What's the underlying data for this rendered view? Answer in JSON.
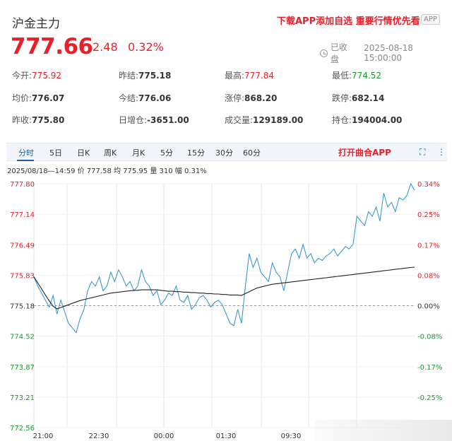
{
  "header": {
    "title": "沪金主力",
    "promo": "下载APP添加自选 重要行情优先看",
    "app_badge": "APP",
    "price": "777.66",
    "change": "2.48",
    "change_pct": "0.32%",
    "status": "已收盘",
    "timestamp": "2025-08-18 15:00:00"
  },
  "stats": [
    {
      "label": "今开:",
      "value": "775.92",
      "color": "red"
    },
    {
      "label": "昨结:",
      "value": "775.18",
      "color": "normal"
    },
    {
      "label": "最高:",
      "value": "777.84",
      "color": "red"
    },
    {
      "label": "最低:",
      "value": "774.52",
      "color": "green"
    },
    {
      "label": "均价:",
      "value": "776.07",
      "color": "normal"
    },
    {
      "label": "今结:",
      "value": "776.06",
      "color": "normal"
    },
    {
      "label": "涨停:",
      "value": "868.20",
      "color": "normal"
    },
    {
      "label": "跌停:",
      "value": "682.14",
      "color": "normal"
    },
    {
      "label": "昨收:",
      "value": "775.80",
      "color": "normal"
    },
    {
      "label": "日增仓:",
      "value": "-3651.00",
      "color": "normal"
    },
    {
      "label": "成交量:",
      "value": "129189.00",
      "color": "normal"
    },
    {
      "label": "持仓:",
      "value": "194004.00",
      "color": "normal"
    }
  ],
  "tabs": [
    "分时",
    "5日",
    "日K",
    "周K",
    "月K",
    "5分",
    "15分",
    "30分",
    "60分"
  ],
  "active_tab": "分时",
  "open_app": "打开曲合APP",
  "info_line": "2025/08/18—14:59  价 777.58  均 775.95  量 310  幅 0.31%",
  "colors": {
    "up": "#e8202a",
    "down": "#1a9a2a",
    "price_line": "#2a8fd0",
    "avg_line": "#222222",
    "accent": "#1a5fb4"
  },
  "chart_data": {
    "type": "line",
    "y_left_ticks": [
      "777.80",
      "777.14",
      "776.49",
      "775.83",
      "775.18",
      "774.52",
      "773.87",
      "773.21",
      "772.56"
    ],
    "y_right_ticks": [
      "0.34%",
      "0.25%",
      "0.17%",
      "0.08%",
      "0.00%",
      "-0.08%",
      "-0.17%",
      "-0.25%"
    ],
    "ylim": [
      772.56,
      777.8
    ],
    "reference": 775.18,
    "x_ticks": [
      "21:00",
      "22:30",
      "00:00",
      "01:30",
      "09:30"
    ],
    "n_points": 100,
    "series": [
      {
        "values": [
          775.8,
          775.6,
          775.45,
          775.3,
          775.15,
          775.4,
          775.0,
          775.3,
          775.05,
          774.8,
          774.7,
          774.6,
          774.9,
          775.1,
          775.5,
          775.7,
          775.6,
          775.8,
          775.5,
          775.6,
          775.9,
          775.7,
          775.95,
          775.8,
          775.6,
          775.7,
          775.5,
          775.6,
          775.95,
          775.7,
          775.6,
          775.4,
          775.5,
          775.2,
          775.3,
          775.45,
          775.4,
          775.6,
          775.3,
          775.25,
          775.4,
          775.1,
          775.2,
          775.35,
          775.4,
          775.3,
          775.15,
          775.25,
          775.3,
          775.2,
          775.0,
          774.8,
          774.75,
          775.1,
          774.8,
          775.6,
          776.3,
          776.0,
          776.2,
          775.9,
          775.8,
          775.7,
          776.1,
          775.9,
          775.8,
          775.5,
          775.9,
          776.3,
          776.4,
          776.2,
          776.5,
          776.2,
          776.3,
          776.1,
          776.2,
          776.15,
          776.25,
          776.3,
          776.4,
          776.25,
          776.35,
          776.45,
          776.4,
          776.5,
          777.1,
          777.0,
          776.9,
          777.2,
          777.1,
          777.3,
          777.0,
          777.6,
          777.3,
          777.4,
          777.2,
          777.5,
          777.45,
          777.55,
          777.8,
          777.66
        ]
      },
      {
        "values": [
          775.8,
          775.67,
          775.54,
          775.41,
          775.28,
          775.17,
          775.11,
          775.14,
          775.17,
          775.2,
          775.23,
          775.26,
          775.29,
          775.31,
          775.33,
          775.35,
          775.37,
          775.39,
          775.41,
          775.43,
          775.45,
          775.46,
          775.47,
          775.48,
          775.49,
          775.5,
          775.51,
          775.51,
          775.52,
          775.52,
          775.52,
          775.52,
          775.52,
          775.51,
          775.5,
          775.49,
          775.49,
          775.48,
          775.48,
          775.47,
          775.47,
          775.46,
          775.46,
          775.45,
          775.45,
          775.44,
          775.44,
          775.43,
          775.43,
          775.42,
          775.42,
          775.41,
          775.41,
          775.41,
          775.4,
          775.44,
          775.48,
          775.52,
          775.56,
          775.58,
          775.6,
          775.62,
          775.64,
          775.65,
          775.66,
          775.67,
          775.68,
          775.69,
          775.7,
          775.71,
          775.72,
          775.73,
          775.74,
          775.75,
          775.76,
          775.77,
          775.78,
          775.79,
          775.8,
          775.81,
          775.82,
          775.83,
          775.84,
          775.85,
          775.86,
          775.87,
          775.88,
          775.89,
          775.9,
          775.91,
          775.92,
          775.93,
          775.94,
          775.95,
          775.96,
          775.97,
          775.98,
          775.99,
          776.0,
          776.01
        ]
      }
    ]
  }
}
